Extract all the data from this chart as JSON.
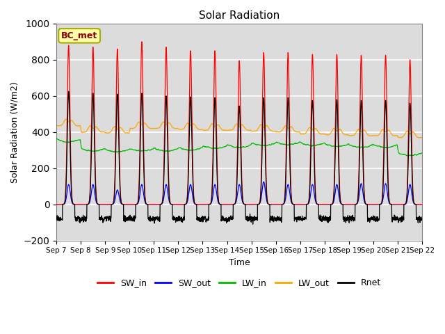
{
  "title": "Solar Radiation",
  "xlabel": "Time",
  "ylabel": "Solar Radiation (W/m2)",
  "annotation": "BC_met",
  "ylim": [
    -200,
    1000
  ],
  "series": [
    "SW_in",
    "SW_out",
    "LW_in",
    "LW_out",
    "Rnet"
  ],
  "colors": {
    "SW_in": "#FF0000",
    "SW_out": "#0000FF",
    "LW_in": "#00BB00",
    "LW_out": "#FFA500",
    "Rnet": "#000000"
  },
  "x_tick_labels": [
    "Sep 7",
    "Sep 8",
    "Sep 9",
    "Sep 10",
    "Sep 11",
    "Sep 12",
    "Sep 13",
    "Sep 14",
    "Sep 15",
    "Sep 16",
    "Sep 17",
    "Sep 18",
    "Sep 19",
    "Sep 20",
    "Sep 21",
    "Sep 22"
  ],
  "n_days": 15,
  "bg_color": "#DCDCDC",
  "fig_color": "#FFFFFF",
  "yticks": [
    -200,
    0,
    200,
    400,
    600,
    800,
    1000
  ]
}
